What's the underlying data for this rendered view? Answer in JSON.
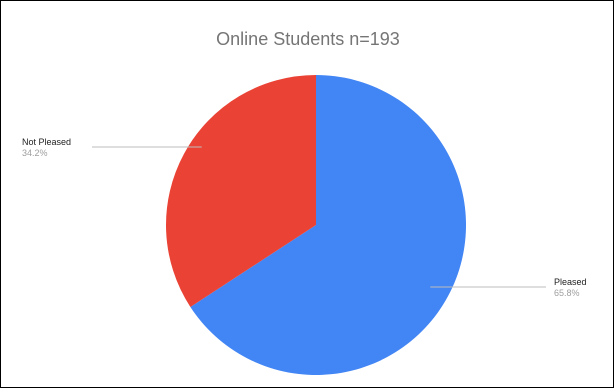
{
  "chart_data": {
    "type": "pie",
    "title": "Online Students n=193",
    "slices": [
      {
        "label": "Pleased",
        "value": 65.8,
        "value_label": "65.8%",
        "color": "#4285F4"
      },
      {
        "label": "Not Pleased",
        "value": 34.2,
        "value_label": "34.2%",
        "color": "#EA4335"
      }
    ],
    "legend": "none",
    "label_color": "#222222",
    "value_label_color": "#9e9e9e",
    "leader_color": "#bdbdbd"
  }
}
